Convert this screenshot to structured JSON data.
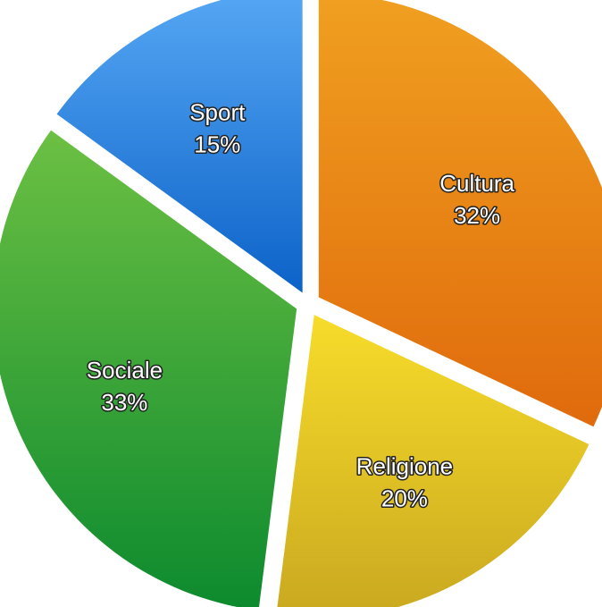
{
  "chart_data": {
    "type": "pie",
    "slices": [
      {
        "label": "Cultura",
        "percent_label": "32%",
        "value": 32,
        "color_light": "#f0a020",
        "color_dark": "#e06a0c"
      },
      {
        "label": "Religione",
        "percent_label": "20%",
        "value": 20,
        "color_light": "#f7dc2a",
        "color_dark": "#c9a820"
      },
      {
        "label": "Sociale",
        "percent_label": "33%",
        "value": 33,
        "color_light": "#6cc043",
        "color_dark": "#0c8a2e"
      },
      {
        "label": "Sport",
        "percent_label": "15%",
        "value": 15,
        "color_light": "#56a8f4",
        "color_dark": "#0c62c8"
      }
    ],
    "exploded": true
  }
}
